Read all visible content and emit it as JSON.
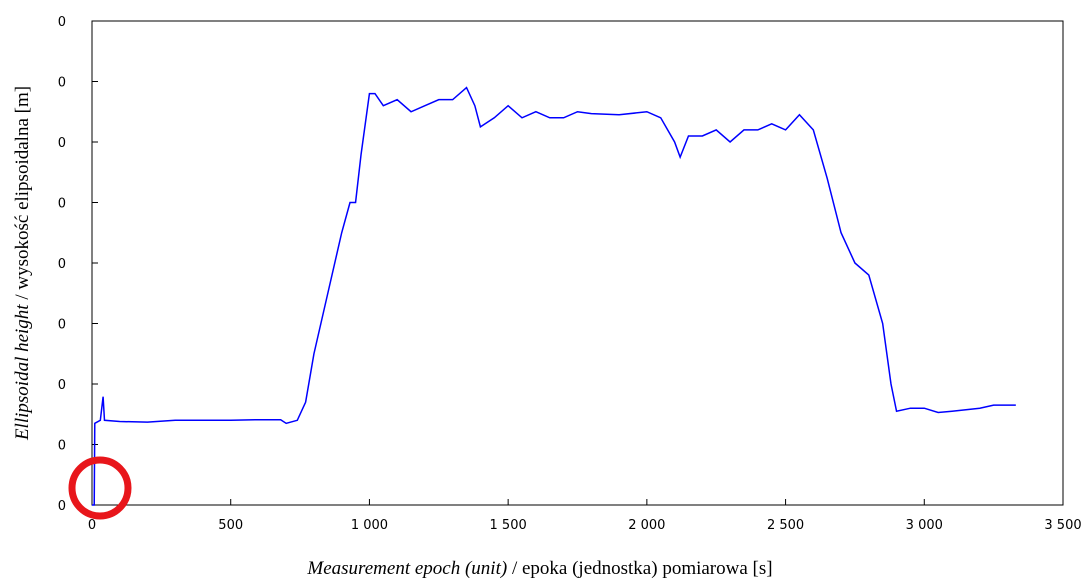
{
  "chart_data": {
    "type": "line",
    "x_label": [
      "Measurement epoch (unit)",
      " / epoka (jednostka) pomiarowa [s]"
    ],
    "y_label": [
      "Ellipsoidal height",
      " / wysokość elipsoidalna [m]"
    ],
    "xlim": [
      0,
      3500
    ],
    "xticks": [
      0,
      500,
      {
        "value": 1000,
        "label": "1 000"
      },
      {
        "value": 1500,
        "label": "1 500"
      },
      {
        "value": 2000,
        "label": "2 000"
      },
      {
        "value": 2500,
        "label": "2 500"
      },
      {
        "value": 3000,
        "label": "3 000"
      },
      {
        "value": 3500,
        "label": "3 500"
      }
    ],
    "ylim": [
      0,
      80
    ],
    "yticks": [
      0,
      {
        "value": 10,
        "label": "0"
      },
      {
        "value": 20,
        "label": "0"
      },
      {
        "value": 30,
        "label": "0"
      },
      {
        "value": 40,
        "label": "0"
      },
      {
        "value": 50,
        "label": "0"
      },
      {
        "value": 60,
        "label": "0"
      },
      {
        "value": 70,
        "label": "0"
      },
      {
        "value": 80,
        "label": "0"
      }
    ],
    "series": [
      {
        "color": "#0000ff",
        "x": [
          0,
          8,
          10,
          30,
          40,
          45,
          100,
          200,
          300,
          400,
          500,
          600,
          680,
          700,
          740,
          770,
          800,
          850,
          900,
          930,
          950,
          970,
          1000,
          1020,
          1050,
          1100,
          1150,
          1200,
          1250,
          1300,
          1350,
          1380,
          1400,
          1450,
          1500,
          1550,
          1600,
          1650,
          1700,
          1750,
          1800,
          1900,
          2000,
          2050,
          2100,
          2120,
          2150,
          2200,
          2250,
          2300,
          2350,
          2400,
          2450,
          2500,
          2550,
          2600,
          2650,
          2700,
          2750,
          2800,
          2850,
          2880,
          2900,
          2950,
          3000,
          3050,
          3100,
          3200,
          3250,
          3330
        ],
        "values": [
          0,
          0,
          13.5,
          14,
          17.9,
          14,
          13.8,
          13.7,
          14,
          14,
          14,
          14.1,
          14.1,
          13.5,
          14,
          17,
          25,
          35,
          45,
          50,
          50,
          58,
          68,
          68,
          66,
          67,
          65,
          66,
          67,
          67,
          69,
          66,
          62.5,
          64,
          66,
          64,
          65,
          64,
          64,
          65,
          64.7,
          64.5,
          65,
          64,
          60,
          57.5,
          61,
          61,
          62,
          60,
          62,
          62,
          63,
          62,
          64.5,
          62,
          54,
          45,
          40,
          38,
          30,
          20,
          15.5,
          16,
          16,
          15.3,
          15.5,
          16,
          16.5,
          16.5
        ]
      }
    ]
  }
}
